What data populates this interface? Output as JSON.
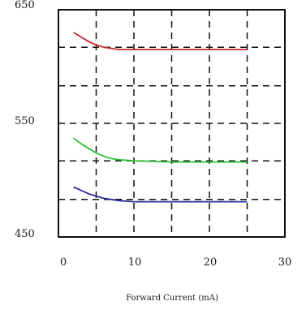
{
  "chart_data": {
    "type": "line",
    "title": "",
    "xlabel": "Forward Current (mA)",
    "ylabel": "",
    "xlim": [
      0,
      30
    ],
    "ylim": [
      450,
      650
    ],
    "x_ticks": [
      "0",
      "10",
      "20",
      "30"
    ],
    "y_ticks": [
      "450",
      "550",
      "650"
    ],
    "grid": true,
    "series": [
      {
        "color": "#c0282d",
        "points": [
          [
            2,
            630
          ],
          [
            3,
            626
          ],
          [
            4,
            622
          ],
          [
            5,
            619
          ],
          [
            6,
            617
          ],
          [
            7,
            616
          ],
          [
            8,
            615
          ],
          [
            10,
            615
          ],
          [
            15,
            615
          ],
          [
            20,
            615
          ],
          [
            25,
            615
          ]
        ]
      },
      {
        "color": "#2fbf3a",
        "points": [
          [
            2,
            537
          ],
          [
            3,
            532
          ],
          [
            4,
            528
          ],
          [
            5,
            524
          ],
          [
            6,
            521
          ],
          [
            7,
            519
          ],
          [
            8,
            518
          ],
          [
            10,
            517
          ],
          [
            15,
            516
          ],
          [
            20,
            516
          ],
          [
            25,
            516
          ]
        ]
      },
      {
        "color": "#2a2a9a",
        "points": [
          [
            2,
            494
          ],
          [
            3,
            491
          ],
          [
            4,
            488
          ],
          [
            5,
            486
          ],
          [
            6,
            484
          ],
          [
            7,
            483
          ],
          [
            8,
            482
          ],
          [
            10,
            481
          ],
          [
            15,
            481
          ],
          [
            20,
            481
          ],
          [
            25,
            481
          ]
        ]
      }
    ]
  }
}
